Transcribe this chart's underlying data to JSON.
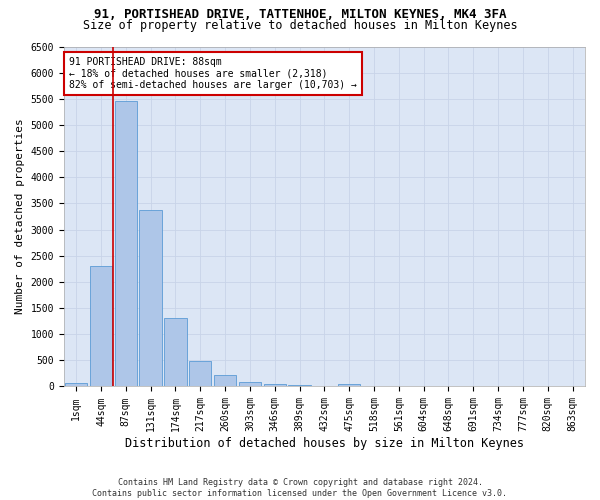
{
  "title1": "91, PORTISHEAD DRIVE, TATTENHOE, MILTON KEYNES, MK4 3FA",
  "title2": "Size of property relative to detached houses in Milton Keynes",
  "xlabel": "Distribution of detached houses by size in Milton Keynes",
  "ylabel": "Number of detached properties",
  "footer1": "Contains HM Land Registry data © Crown copyright and database right 2024.",
  "footer2": "Contains public sector information licensed under the Open Government Licence v3.0.",
  "annotation_line1": "91 PORTISHEAD DRIVE: 88sqm",
  "annotation_line2": "← 18% of detached houses are smaller (2,318)",
  "annotation_line3": "82% of semi-detached houses are larger (10,703) →",
  "bar_labels": [
    "1sqm",
    "44sqm",
    "87sqm",
    "131sqm",
    "174sqm",
    "217sqm",
    "260sqm",
    "303sqm",
    "346sqm",
    "389sqm",
    "432sqm",
    "475sqm",
    "518sqm",
    "561sqm",
    "604sqm",
    "648sqm",
    "691sqm",
    "734sqm",
    "777sqm",
    "820sqm",
    "863sqm"
  ],
  "bar_values": [
    70,
    2300,
    5450,
    3380,
    1310,
    480,
    210,
    95,
    50,
    20,
    10,
    50,
    0,
    0,
    0,
    0,
    0,
    0,
    0,
    0,
    0
  ],
  "bar_color": "#aec6e8",
  "bar_edge_color": "#5b9bd5",
  "vline_color": "#cc0000",
  "ylim_max": 6500,
  "yticks": [
    0,
    500,
    1000,
    1500,
    2000,
    2500,
    3000,
    3500,
    4000,
    4500,
    5000,
    5500,
    6000,
    6500
  ],
  "grid_color": "#c8d4e8",
  "background_color": "#dce6f5",
  "annotation_box_edge": "#cc0000",
  "title_fontsize": 9,
  "subtitle_fontsize": 8.5,
  "axis_label_fontsize": 8,
  "tick_fontsize": 7,
  "footer_fontsize": 6
}
